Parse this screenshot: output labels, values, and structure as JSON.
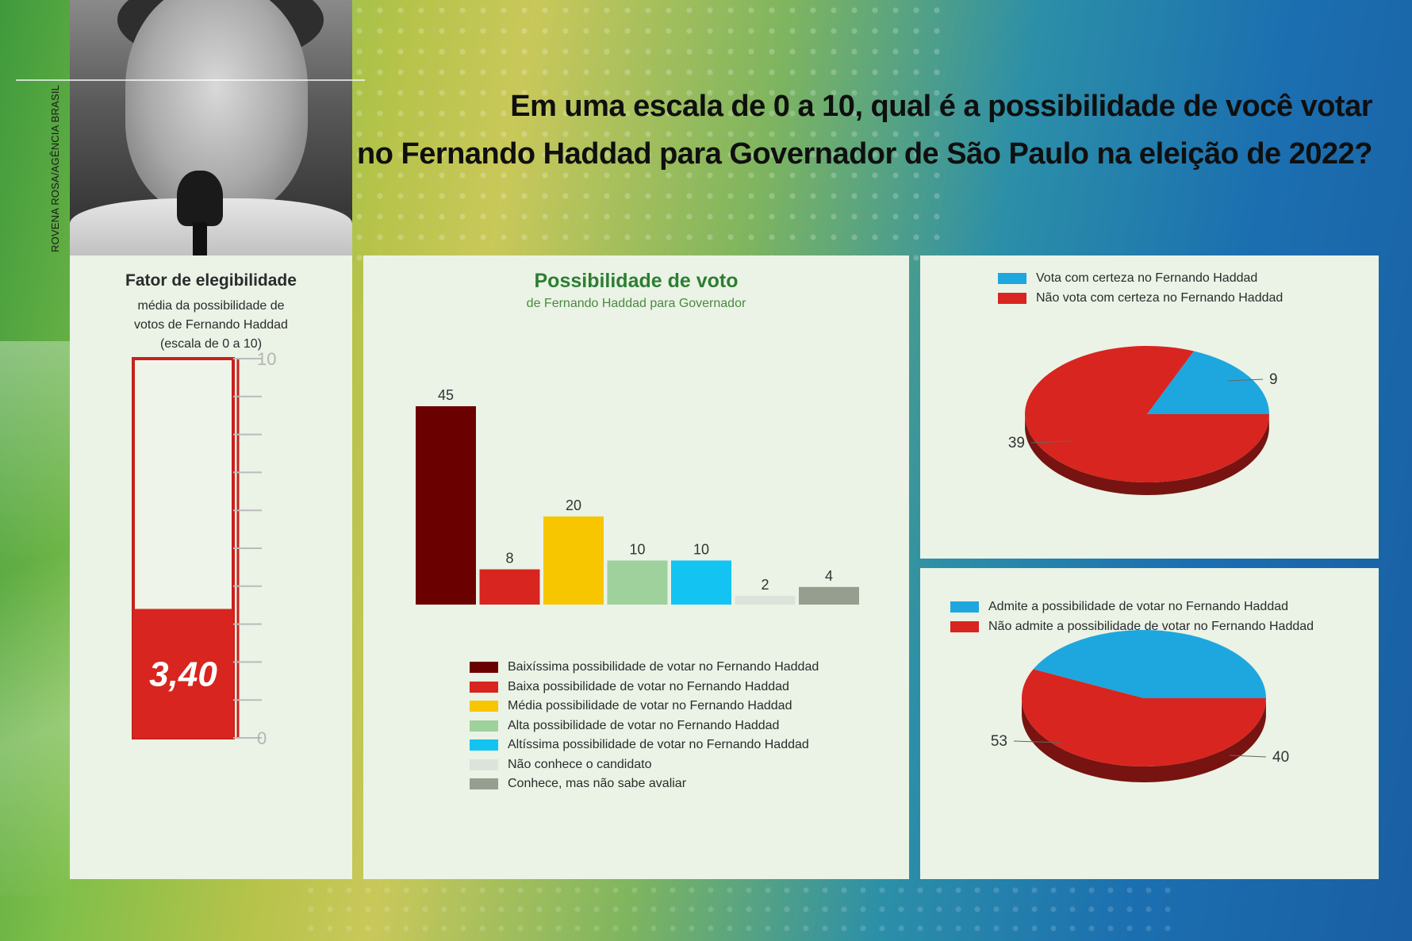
{
  "header": {
    "title_line1": "Em uma escala de 0 a 10, qual é a possibilidade de você votar",
    "title_line2": "no Fernando Haddad para Governador de São Paulo na eleição de 2022?",
    "photo_credit": "ROVENA ROSA/AGÊNCIA BRASIL"
  },
  "colors": {
    "dark_red": "#6b0000",
    "red": "#d8251f",
    "yellow": "#f7c600",
    "light_green": "#9fd19c",
    "cyan": "#13c4f2",
    "pale_gray": "#dde3da",
    "gray": "#969e90",
    "pie_blue": "#1ea7de",
    "pie_red": "#d8251f"
  },
  "chart_data": [
    {
      "type": "gauge",
      "title": "Fator de elegibilidade",
      "subtitle_lines": [
        "média da possibilidade de",
        "votos de Fernando Haddad",
        "(escala de 0 a 10)"
      ],
      "value": 3.4,
      "value_label": "3,40",
      "min": 0,
      "max": 10,
      "tick_labels": [
        "10",
        "0"
      ]
    },
    {
      "type": "bar",
      "title": "Possibilidade de voto",
      "subtitle": "de Fernando Haddad para Governador",
      "values": [
        45,
        8,
        20,
        10,
        10,
        2,
        4
      ],
      "value_labels": [
        "45",
        "8",
        "20",
        "10",
        "10",
        "2",
        "4"
      ],
      "categories": [
        "Baixíssima possibilidade de votar no Fernando Haddad",
        "Baixa possibilidade de votar no Fernando Haddad",
        "Média possibilidade de votar no Fernando Haddad",
        "Alta possibilidade de votar no Fernando Haddad",
        "Altíssima possibilidade de votar no Fernando Haddad",
        "Não conhece o candidato",
        "Conhece, mas não sabe avaliar"
      ],
      "colors": [
        "#6b0000",
        "#d8251f",
        "#f7c600",
        "#9fd19c",
        "#13c4f2",
        "#dde3da",
        "#969e90"
      ],
      "ylim": [
        0,
        45
      ],
      "legend_position": "bottom"
    },
    {
      "type": "pie",
      "legend": [
        "Vota com certeza no Fernando Haddad",
        "Não vota com certeza no Fernando Haddad"
      ],
      "values": [
        9,
        39
      ],
      "value_labels": [
        "9",
        "39"
      ],
      "colors": [
        "#1ea7de",
        "#d8251f"
      ],
      "legend_position": "top"
    },
    {
      "type": "pie",
      "legend": [
        "Admite a possibilidade de votar no Fernando Haddad",
        "Não admite a possibilidade de votar no Fernando Haddad"
      ],
      "values": [
        40,
        53
      ],
      "value_labels": [
        "40",
        "53"
      ],
      "colors": [
        "#1ea7de",
        "#d8251f"
      ],
      "legend_position": "top"
    }
  ]
}
